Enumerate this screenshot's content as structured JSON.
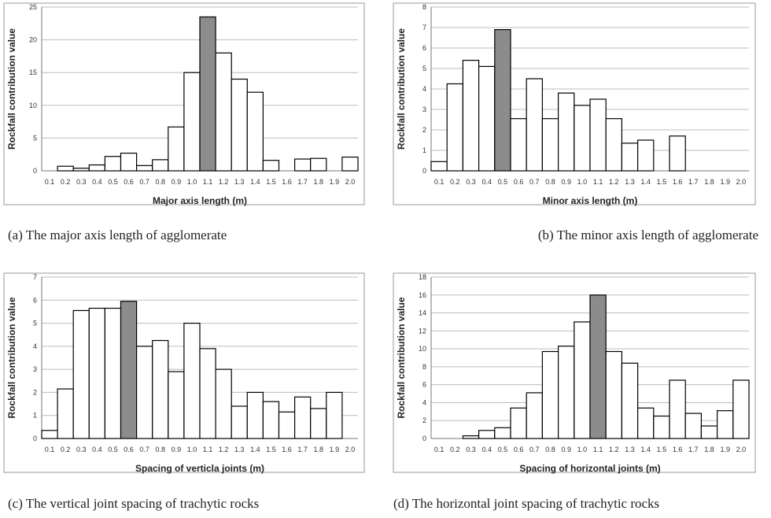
{
  "colors": {
    "bar_fill": "#ffffff",
    "highlight_fill": "#8c8c8c",
    "bar_stroke": "#000000",
    "grid": "#bdbdbd"
  },
  "chart_data": [
    {
      "type": "bar",
      "panel": "a",
      "caption": "(a)  The  major  axis  length  of  agglomerate",
      "xlabel": "Major axis length (m)",
      "ylabel": "Rockfall contribution value",
      "categories": [
        "0.1",
        "0.2",
        "0.3",
        "0.4",
        "0.5",
        "0.6",
        "0.7",
        "0.8",
        "0.9",
        "1.0",
        "1.1",
        "1.2",
        "1.3",
        "1.4",
        "1.5",
        "1.6",
        "1.7",
        "1.8",
        "1.9",
        "2.0"
      ],
      "values": [
        0,
        0.7,
        0.4,
        0.9,
        2.2,
        2.7,
        0.8,
        1.7,
        6.7,
        15,
        23.5,
        18,
        14,
        12,
        1.6,
        0,
        1.8,
        1.9,
        0,
        2.1
      ],
      "highlight_category": "1.1",
      "ylim": [
        0,
        25
      ],
      "yticks": [
        0,
        5,
        10,
        15,
        20,
        25
      ],
      "grid": true,
      "legend": "none"
    },
    {
      "type": "bar",
      "panel": "b",
      "caption": "(b)  The  minor   axis  length  of  agglomerate",
      "xlabel": "Minor axis length (m)",
      "ylabel": "Rockfall contribution value",
      "categories": [
        "0.1",
        "0.2",
        "0.3",
        "0.4",
        "0.5",
        "0.6",
        "0.7",
        "0.8",
        "0.9",
        "1.0",
        "1.1",
        "1.2",
        "1.3",
        "1.4",
        "1.5",
        "1.6",
        "1.7",
        "1.8",
        "1.9",
        "2.0"
      ],
      "values": [
        0.45,
        4.25,
        5.4,
        5.1,
        6.9,
        2.55,
        4.5,
        2.55,
        3.8,
        3.2,
        3.5,
        2.55,
        1.35,
        1.5,
        0,
        1.7,
        0,
        0,
        0,
        0
      ],
      "highlight_category": "0.5",
      "ylim": [
        0,
        8
      ],
      "yticks": [
        0,
        1,
        2,
        3,
        4,
        5,
        6,
        7,
        8
      ],
      "grid": true,
      "legend": "none"
    },
    {
      "type": "bar",
      "panel": "c",
      "caption": "(c)  The  vertical  joint  spacing  of  trachytic  rocks",
      "xlabel": "Spacing of verticla joints (m)",
      "ylabel": "Rockfall contribution value",
      "categories": [
        "0.1",
        "0.2",
        "0.3",
        "0.4",
        "0.5",
        "0.6",
        "0.7",
        "0.8",
        "0.9",
        "1.0",
        "1.1",
        "1.2",
        "1.3",
        "1.4",
        "1.5",
        "1.6",
        "1.7",
        "1.8",
        "1.9",
        "2.0"
      ],
      "values": [
        0.35,
        2.15,
        5.55,
        5.65,
        5.65,
        5.95,
        4.0,
        4.25,
        2.9,
        5.0,
        3.9,
        3.0,
        1.4,
        2.0,
        1.6,
        1.15,
        1.8,
        1.3,
        2.0,
        0
      ],
      "highlight_category": "0.6",
      "ylim": [
        0,
        7
      ],
      "yticks": [
        0,
        1,
        2,
        3,
        4,
        5,
        6,
        7
      ],
      "grid": true,
      "legend": "none"
    },
    {
      "type": "bar",
      "panel": "d",
      "caption": "(d)  The  horizontal  joint  spacing  of  trachytic  rocks",
      "xlabel": "Spacing of horizontal joints (m)",
      "ylabel": "Rockfall contribution value",
      "categories": [
        "0.1",
        "0.2",
        "0.3",
        "0.4",
        "0.5",
        "0.6",
        "0.7",
        "0.8",
        "0.9",
        "1.0",
        "1.1",
        "1.2",
        "1.3",
        "1.4",
        "1.5",
        "1.6",
        "1.7",
        "1.8",
        "1.9",
        "2.0"
      ],
      "values": [
        0,
        0,
        0.3,
        0.9,
        1.2,
        3.4,
        5.1,
        9.7,
        10.3,
        13.0,
        16.0,
        9.7,
        8.4,
        3.4,
        2.5,
        6.5,
        2.8,
        1.4,
        3.1,
        6.5
      ],
      "highlight_category": "1.1",
      "ylim": [
        0,
        18
      ],
      "yticks": [
        0,
        2,
        4,
        6,
        8,
        10,
        12,
        14,
        16,
        18
      ],
      "grid": true,
      "legend": "none"
    }
  ]
}
